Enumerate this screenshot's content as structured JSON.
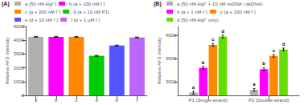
{
  "chart_data": [
    {
      "type": "bar",
      "title": "(A)",
      "categories": [
        "a",
        "b",
        "c",
        "d",
        "e",
        "f"
      ],
      "series": [
        {
          "name": "a (50 nM Hg²⁺)",
          "color": "#b0b0b0",
          "values": [
            4250,
            null,
            null,
            null,
            null,
            null
          ],
          "errors": [
            30,
            null,
            null,
            null,
            null,
            null
          ]
        },
        {
          "name": "b (a + 100 nM I⁻)",
          "color": "#ff00ff",
          "values": [
            null,
            4250,
            null,
            null,
            null,
            null
          ],
          "errors": [
            null,
            30,
            null,
            null,
            null,
            null
          ]
        },
        {
          "name": "c (a + 300 nM I⁻)",
          "color": "#ff8800",
          "values": [
            null,
            null,
            4250,
            null,
            null,
            null
          ],
          "errors": [
            null,
            null,
            30,
            null,
            null,
            null
          ]
        },
        {
          "name": "d (a + 10 nM P1)",
          "color": "#00cc00",
          "values": [
            null,
            null,
            null,
            2870,
            null,
            null
          ],
          "errors": [
            null,
            null,
            null,
            30,
            null,
            null
          ]
        },
        {
          "name": "e (d + 10 nM I⁻)",
          "color": "#5555ff",
          "values": [
            null,
            null,
            null,
            null,
            3620,
            null
          ],
          "errors": [
            null,
            null,
            null,
            null,
            30,
            null
          ]
        },
        {
          "name": "f (d + 1 µM I⁻)",
          "color": "#bb66ff",
          "values": [
            null,
            null,
            null,
            null,
            null,
            4200
          ],
          "errors": [
            null,
            null,
            null,
            null,
            null,
            30
          ]
        }
      ],
      "ylabel": "Relative AFS intensity",
      "ylim": [
        0,
        5000
      ],
      "yticks": [
        0,
        1000,
        2000,
        3000,
        4000,
        5000
      ],
      "grid": false,
      "legend": "top"
    },
    {
      "type": "bar",
      "title": "(B)",
      "categories": [
        "P1 (Single-strand)",
        "P2 (Double-strand)"
      ],
      "series": [
        {
          "name": "a (50 nM Hg²⁺ + 10 nM ssDNA / dsDNA)",
          "label": "a",
          "color": "#b0b0b0",
          "values": [
            2760,
            2820
          ],
          "errors": [
            30,
            30
          ]
        },
        {
          "name": "b (a + 1 nM I⁻)",
          "label": "b",
          "color": "#ff00ff",
          "values": [
            3300,
            3270
          ],
          "errors": [
            30,
            30
          ]
        },
        {
          "name": "c (a + 100 nM I⁻)",
          "label": "c",
          "color": "#ff8800",
          "values": [
            3800,
            3560
          ],
          "errors": [
            30,
            30
          ]
        },
        {
          "name": "d (50 nM Hg²⁺ only)",
          "label": "d",
          "color": "#66dd00",
          "values": [
            3980,
            3700
          ],
          "errors": [
            30,
            30
          ]
        }
      ],
      "ylabel": "Relative AFS intensity",
      "ylim": [
        2700,
        4200
      ],
      "yticks": [
        3000,
        3500,
        4000
      ],
      "grid": false,
      "legend": "top"
    }
  ]
}
